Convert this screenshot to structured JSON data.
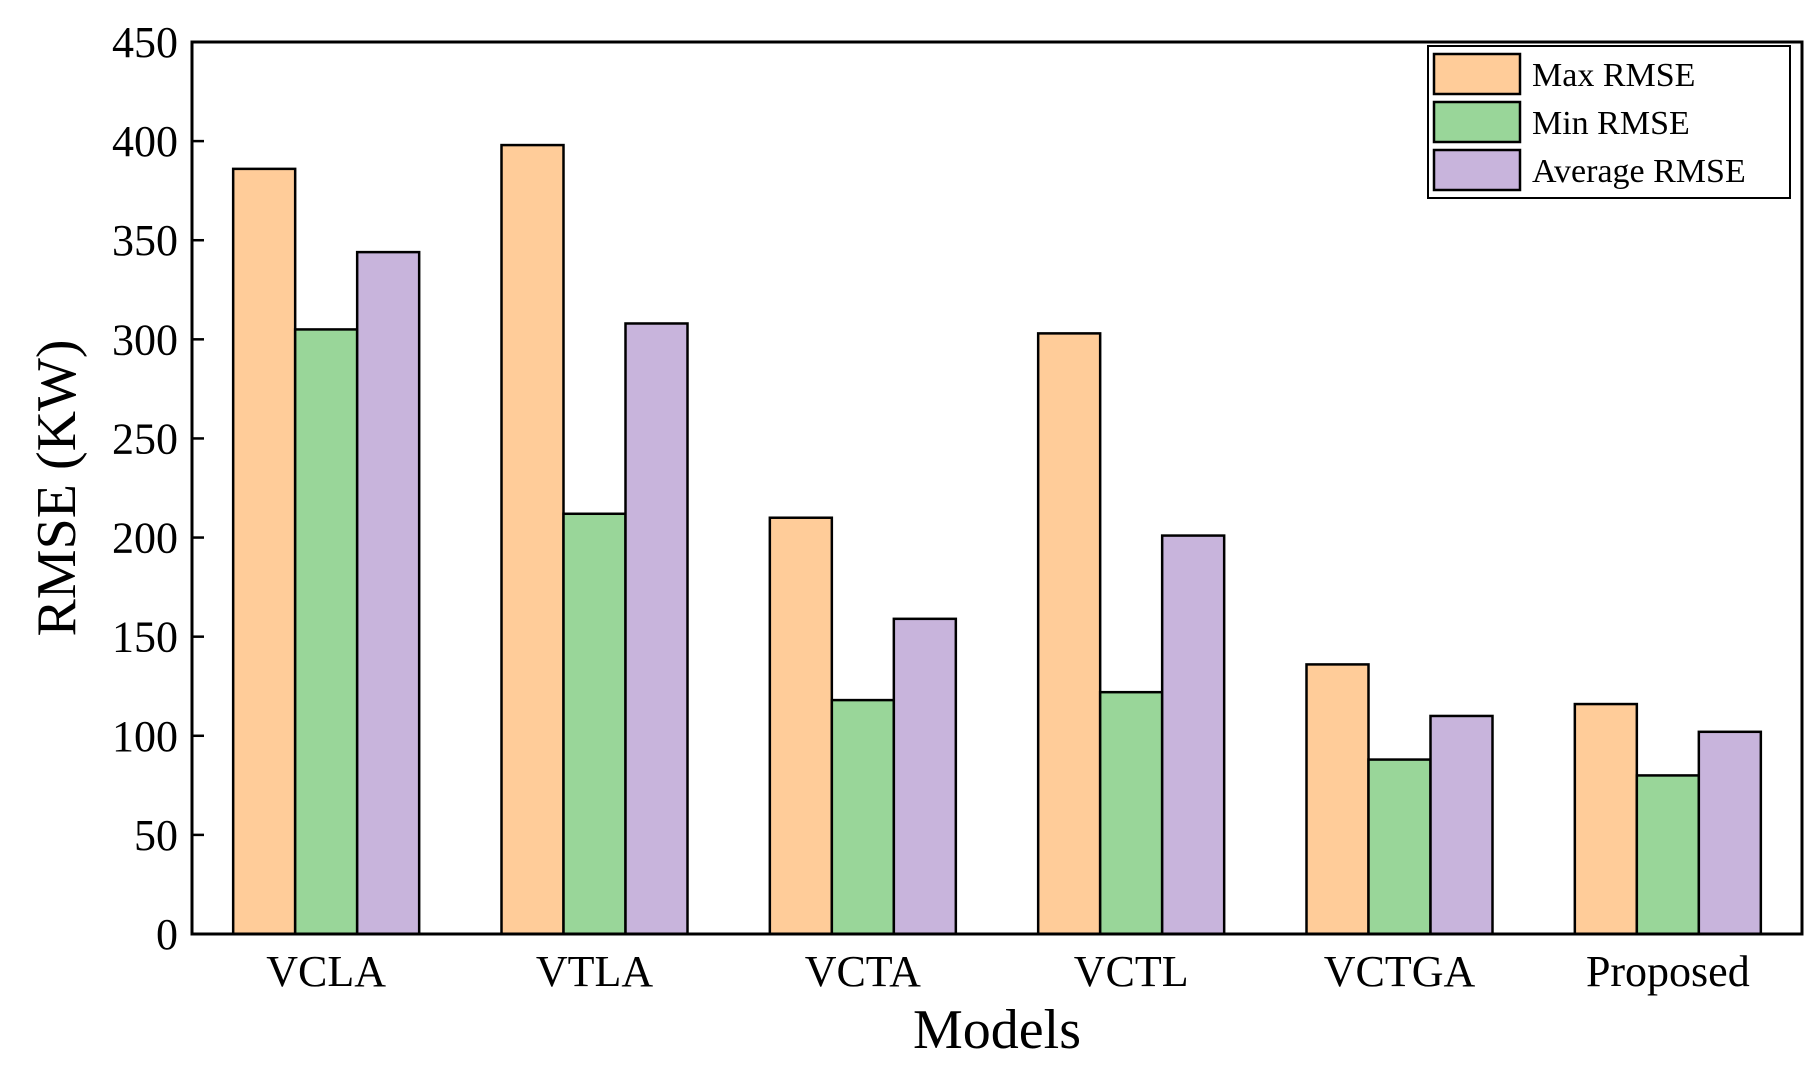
{
  "chart_data": {
    "type": "bar",
    "title": "",
    "xlabel": "Models",
    "ylabel": "RMSE (KW)",
    "ylim": [
      0,
      450
    ],
    "yticks": [
      0,
      50,
      100,
      150,
      200,
      250,
      300,
      350,
      400,
      450
    ],
    "grid": false,
    "legend_position": "top-right",
    "categories": [
      "VCLA",
      "VTLA",
      "VCTA",
      "VCTL",
      "VCTGA",
      "Proposed"
    ],
    "series": [
      {
        "name": "Max RMSE",
        "color": "#FFCC99",
        "values": [
          386,
          398,
          210,
          303,
          136,
          116
        ]
      },
      {
        "name": "Min RMSE",
        "color": "#99D699",
        "values": [
          305,
          212,
          118,
          122,
          88,
          80
        ]
      },
      {
        "name": "Average RMSE",
        "color": "#C8B4DC",
        "values": [
          344,
          308,
          159,
          201,
          110,
          102
        ]
      }
    ]
  }
}
